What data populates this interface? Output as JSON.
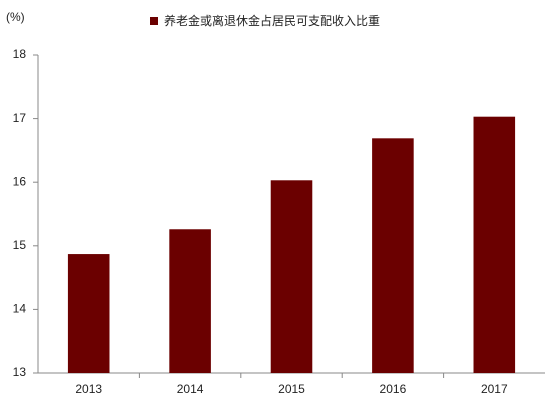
{
  "chart_data": {
    "type": "bar",
    "unit_label": "(%)",
    "categories": [
      "2013",
      "2014",
      "2015",
      "2016",
      "2017"
    ],
    "series": [
      {
        "name": "养老金或离退休金占居民可支配收入比重",
        "color": "#6b0000",
        "values": [
          14.87,
          15.26,
          16.03,
          16.69,
          17.03
        ]
      }
    ],
    "ylim": [
      13,
      18
    ],
    "yticks": [
      13,
      14,
      15,
      16,
      17,
      18
    ],
    "grid": false,
    "legend": "top"
  }
}
